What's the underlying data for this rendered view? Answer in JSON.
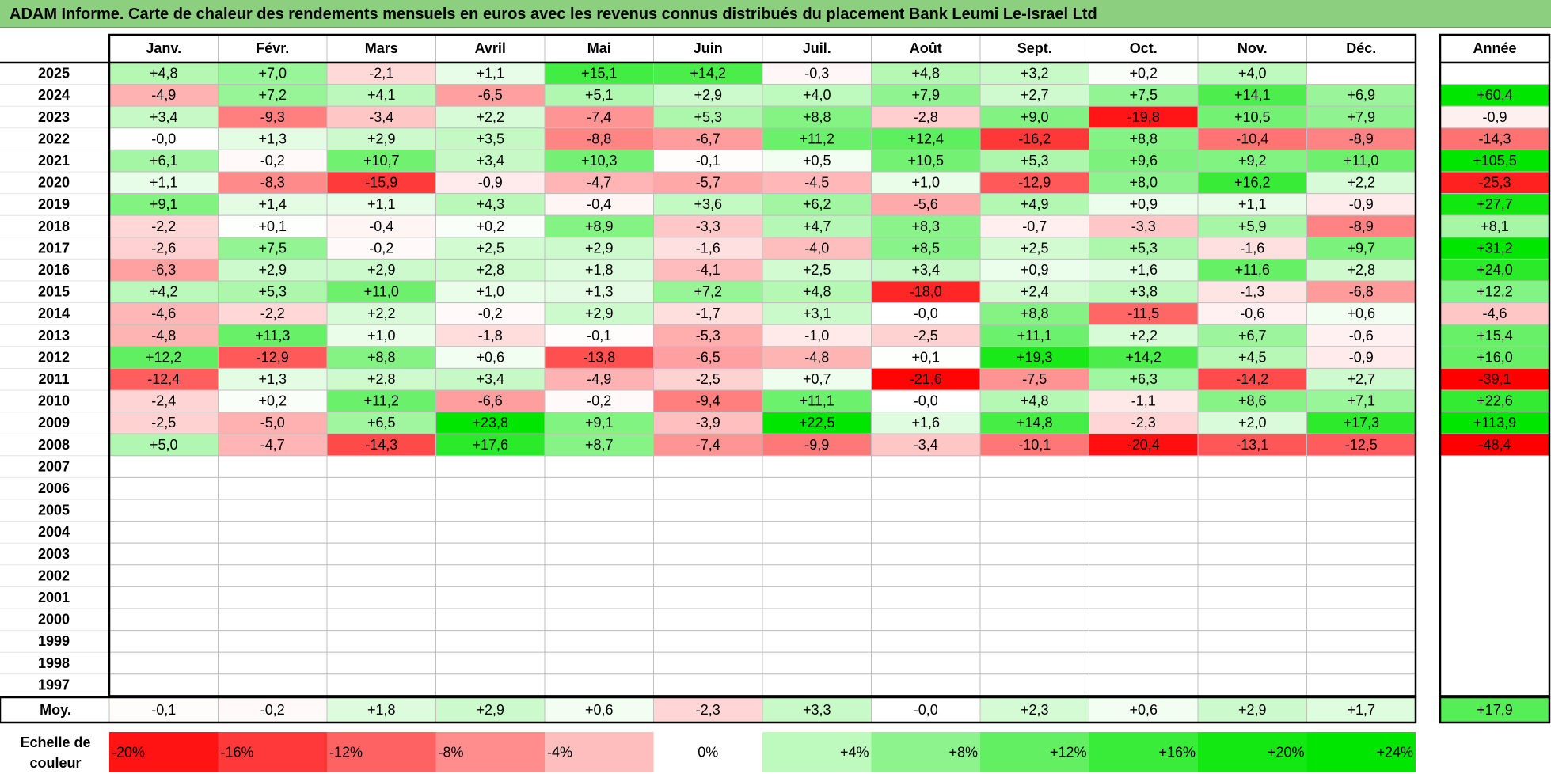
{
  "title": "ADAM Informe. Carte de chaleur des rendements mensuels en euros avec les revenus connus distribués du placement Bank Leumi Le-Israel Ltd",
  "chart_data": {
    "type": "heatmap",
    "title": "ADAM Informe. Carte de chaleur des rendements mensuels en euros avec les revenus connus distribués du placement Bank Leumi Le-Israel Ltd",
    "months": [
      "Janv.",
      "Févr.",
      "Mars",
      "Avril",
      "Mai",
      "Juin",
      "Juil.",
      "Août",
      "Sept.",
      "Oct.",
      "Nov.",
      "Déc."
    ],
    "year_header": "Année",
    "years": [
      "2025",
      "2024",
      "2023",
      "2022",
      "2021",
      "2020",
      "2019",
      "2018",
      "2017",
      "2016",
      "2015",
      "2014",
      "2013",
      "2012",
      "2011",
      "2010",
      "2009",
      "2008",
      "2007",
      "2006",
      "2005",
      "2004",
      "2003",
      "2002",
      "2001",
      "2000",
      "1999",
      "1998",
      "1997"
    ],
    "values": [
      [
        4.8,
        7.0,
        -2.1,
        1.1,
        15.1,
        14.2,
        -0.3,
        4.8,
        3.2,
        0.2,
        4.0,
        null
      ],
      [
        -4.9,
        7.2,
        4.1,
        -6.5,
        5.1,
        2.9,
        4.0,
        7.9,
        2.7,
        7.5,
        14.1,
        6.9
      ],
      [
        3.4,
        -9.3,
        -3.4,
        2.2,
        -7.4,
        5.3,
        8.8,
        -2.8,
        9.0,
        -19.8,
        10.5,
        7.9
      ],
      [
        -0.0,
        1.3,
        2.9,
        3.5,
        -8.8,
        -6.7,
        11.2,
        12.4,
        -16.2,
        8.8,
        -10.4,
        -8.9
      ],
      [
        6.1,
        -0.2,
        10.7,
        3.4,
        10.3,
        -0.1,
        0.5,
        10.5,
        5.3,
        9.6,
        9.2,
        11.0
      ],
      [
        1.1,
        -8.3,
        -15.9,
        -0.9,
        -4.7,
        -5.7,
        -4.5,
        1.0,
        -12.9,
        8.0,
        16.2,
        2.2
      ],
      [
        9.1,
        1.4,
        1.1,
        4.3,
        -0.4,
        3.6,
        6.2,
        -5.6,
        4.9,
        0.9,
        1.1,
        -0.9
      ],
      [
        -2.2,
        0.1,
        -0.4,
        0.2,
        8.9,
        -3.3,
        4.7,
        8.3,
        -0.7,
        -3.3,
        5.9,
        -8.9
      ],
      [
        -2.6,
        7.5,
        -0.2,
        2.5,
        2.9,
        -1.6,
        -4.0,
        8.5,
        2.5,
        5.3,
        -1.6,
        9.7
      ],
      [
        -6.3,
        2.9,
        2.9,
        2.8,
        1.8,
        -4.1,
        2.5,
        3.4,
        0.9,
        1.6,
        11.6,
        2.8
      ],
      [
        4.2,
        5.3,
        11.0,
        1.0,
        1.3,
        7.2,
        4.8,
        -18.0,
        2.4,
        3.8,
        -1.3,
        -6.8
      ],
      [
        -4.6,
        -2.2,
        2.2,
        -0.2,
        2.9,
        -1.7,
        3.1,
        -0.0,
        8.8,
        -11.5,
        -0.6,
        0.6
      ],
      [
        -4.8,
        11.3,
        1.0,
        -1.8,
        -0.1,
        -5.3,
        -1.0,
        -2.5,
        11.1,
        2.2,
        6.7,
        -0.6
      ],
      [
        12.2,
        -12.9,
        8.8,
        0.6,
        -13.8,
        -6.5,
        -4.8,
        0.1,
        19.3,
        14.2,
        4.5,
        -0.9
      ],
      [
        -12.4,
        1.3,
        2.8,
        3.4,
        -4.9,
        -2.5,
        0.7,
        -21.6,
        -7.5,
        6.3,
        -14.2,
        2.7
      ],
      [
        -2.4,
        0.2,
        11.2,
        -6.6,
        -0.2,
        -9.4,
        11.1,
        -0.0,
        4.8,
        -1.1,
        8.6,
        7.1
      ],
      [
        -2.5,
        -5.0,
        6.5,
        23.8,
        9.1,
        -3.9,
        22.5,
        1.6,
        14.8,
        -2.3,
        2.0,
        17.3
      ],
      [
        5.0,
        -4.7,
        -14.3,
        17.6,
        8.7,
        -7.4,
        -9.9,
        -3.4,
        -10.1,
        -20.4,
        -13.1,
        -12.5
      ],
      [
        null,
        null,
        null,
        null,
        null,
        null,
        null,
        null,
        null,
        null,
        null,
        null
      ],
      [
        null,
        null,
        null,
        null,
        null,
        null,
        null,
        null,
        null,
        null,
        null,
        null
      ],
      [
        null,
        null,
        null,
        null,
        null,
        null,
        null,
        null,
        null,
        null,
        null,
        null
      ],
      [
        null,
        null,
        null,
        null,
        null,
        null,
        null,
        null,
        null,
        null,
        null,
        null
      ],
      [
        null,
        null,
        null,
        null,
        null,
        null,
        null,
        null,
        null,
        null,
        null,
        null
      ],
      [
        null,
        null,
        null,
        null,
        null,
        null,
        null,
        null,
        null,
        null,
        null,
        null
      ],
      [
        null,
        null,
        null,
        null,
        null,
        null,
        null,
        null,
        null,
        null,
        null,
        null
      ],
      [
        null,
        null,
        null,
        null,
        null,
        null,
        null,
        null,
        null,
        null,
        null,
        null
      ],
      [
        null,
        null,
        null,
        null,
        null,
        null,
        null,
        null,
        null,
        null,
        null,
        null
      ],
      [
        null,
        null,
        null,
        null,
        null,
        null,
        null,
        null,
        null,
        null,
        null,
        null
      ],
      [
        null,
        null,
        null,
        null,
        null,
        null,
        null,
        null,
        null,
        null,
        null,
        null
      ]
    ],
    "year_values": [
      null,
      60.4,
      -0.9,
      -14.3,
      105.5,
      -25.3,
      27.7,
      8.1,
      31.2,
      24.0,
      12.2,
      -4.6,
      15.4,
      16.0,
      -39.1,
      22.6,
      113.9,
      -48.4,
      null,
      null,
      null,
      null,
      null,
      null,
      null,
      null,
      null,
      null,
      null
    ],
    "average_label": "Moy.",
    "average_values": [
      -0.1,
      -0.2,
      1.8,
      2.9,
      0.6,
      -2.3,
      3.3,
      -0.0,
      2.3,
      0.6,
      2.9,
      1.7
    ],
    "average_year": 17.9,
    "scale_label_lines": [
      "Echelle de",
      "couleur"
    ],
    "scale": [
      {
        "label": "-20%",
        "value": -20
      },
      {
        "label": "-16%",
        "value": -16
      },
      {
        "label": "-12%",
        "value": -12
      },
      {
        "label": "-8%",
        "value": -8
      },
      {
        "label": "-4%",
        "value": -4
      },
      {
        "label": "0%",
        "value": 0
      },
      {
        "label": "+4%",
        "value": 4
      },
      {
        "label": "+8%",
        "value": 8
      },
      {
        "label": "+12%",
        "value": 12
      },
      {
        "label": "+16%",
        "value": 16
      },
      {
        "label": "+20%",
        "value": 20
      },
      {
        "label": "+24%",
        "value": 24
      }
    ],
    "colors": {
      "negative_max": "#ff0000",
      "neutral": "#ffffff",
      "positive_max": "#00e600",
      "grid": "#bfbfbf",
      "border": "#000000"
    }
  }
}
